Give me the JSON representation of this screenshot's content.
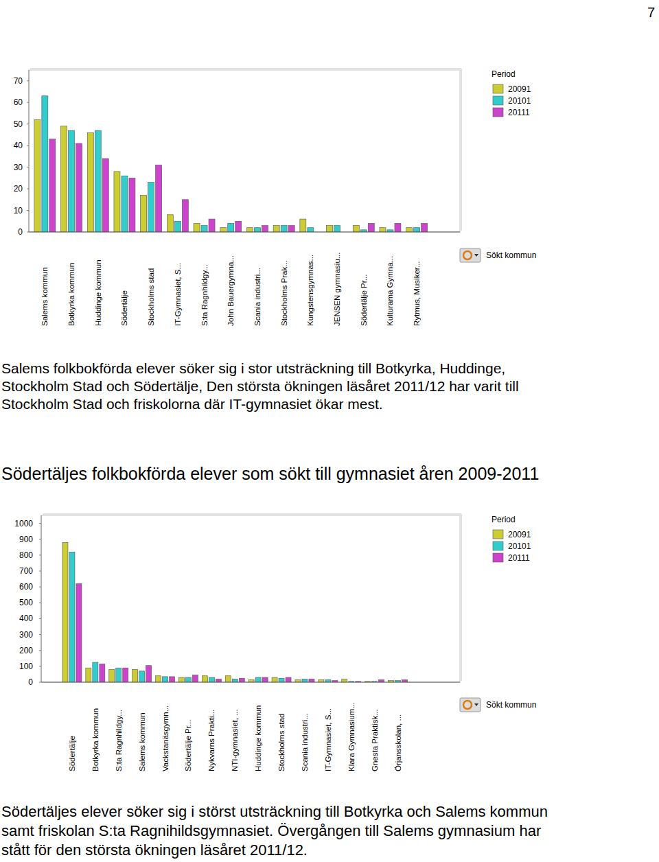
{
  "page_number": "7",
  "paragraphs": [
    {
      "lines": [
        "Salems folkbokförda elever söker sig i stor utsträckning till Botkyrka, Huddinge,",
        "Stockholm Stad och Södertälje, Den största ökningen läsåret 2011/12 har varit till",
        "Stockholm Stad och friskolorna där IT-gymnasiet ökar mest."
      ]
    },
    {
      "lines": [
        "Södertäljes elever söker sig i störst utsträckning till Botkyrka och Salems kommun",
        "samt friskolan S:ta Ragnihildsgymnasiet. Övergången till Salems gymnasium har",
        "stått för den största ökningen läsåret 2011/12."
      ]
    }
  ],
  "chart_data": [
    {
      "type": "bar",
      "legend_title": "Period",
      "annotations": [
        "Sökt kommun"
      ],
      "categories": [
        "Salems kommun",
        "Botkyrka kommun",
        "Huddinge kommun",
        "Södertälje",
        "Stockholms stad",
        "IT-Gymnasiet, S...",
        "S:ta Ragnhildgy...",
        "John Bauergymna...",
        "Scania industri...",
        "Stockholms Prak...",
        "Kungstensgymnas...",
        "JENSEN gymnasiu...",
        "Södertälje Pr...",
        "Kulturama Gymna...",
        "Rytmus, Musiker..."
      ],
      "series": [
        {
          "name": "20091",
          "color": "#cccc33",
          "values": [
            52,
            49,
            46,
            28,
            17,
            8,
            4,
            2,
            2,
            3,
            6,
            3,
            3,
            2,
            2
          ]
        },
        {
          "name": "20101",
          "color": "#33cccc",
          "values": [
            63,
            47,
            47,
            26,
            23,
            5,
            3,
            4,
            2,
            3,
            2,
            3,
            1,
            1,
            2
          ]
        },
        {
          "name": "20111",
          "color": "#cc44cc",
          "values": [
            43,
            41,
            34,
            25,
            31,
            15,
            6,
            5,
            3,
            3,
            0,
            0,
            4,
            4,
            4
          ]
        }
      ],
      "ylim": [
        0,
        75
      ],
      "yticks": [
        0,
        10,
        20,
        30,
        40,
        50,
        60,
        70
      ],
      "grid": false,
      "legend": "right"
    },
    {
      "type": "bar",
      "title": "Södertäljes folkbokförda elever som sökt till gymnasiet åren 2009-2011",
      "legend_title": "Period",
      "annotations": [
        "Sökt kommun"
      ],
      "categories": [
        "Södertälje",
        "Botkyrka kommun",
        "S:ta Ragnhildgy...",
        "Salems kommun",
        "Vackstanäsgymn...",
        "Södertälje Pr...",
        "Nykvarns Prakti...",
        "NTI-gymnasiet, ...",
        "Huddinge kommun",
        "Stockholms stad",
        "Scania industri...",
        "IT-Gymnasiet, S...",
        "Klara Gymnasium...",
        "Gnesta Praktisk...",
        "Örjansskolan, ..."
      ],
      "series": [
        {
          "name": "20091",
          "color": "#cccc33",
          "values": [
            880,
            90,
            80,
            80,
            40,
            30,
            40,
            40,
            15,
            30,
            15,
            15,
            20,
            5,
            10
          ]
        },
        {
          "name": "20101",
          "color": "#33cccc",
          "values": [
            820,
            125,
            90,
            70,
            35,
            30,
            30,
            20,
            30,
            25,
            20,
            15,
            5,
            5,
            10
          ]
        },
        {
          "name": "20111",
          "color": "#cc44cc",
          "values": [
            620,
            115,
            90,
            105,
            35,
            45,
            20,
            25,
            30,
            30,
            20,
            10,
            5,
            15,
            15
          ]
        }
      ],
      "ylim": [
        0,
        1050
      ],
      "yticks": [
        0,
        100,
        200,
        300,
        400,
        500,
        600,
        700,
        800,
        900,
        1000
      ],
      "grid": false,
      "legend": "right"
    }
  ]
}
